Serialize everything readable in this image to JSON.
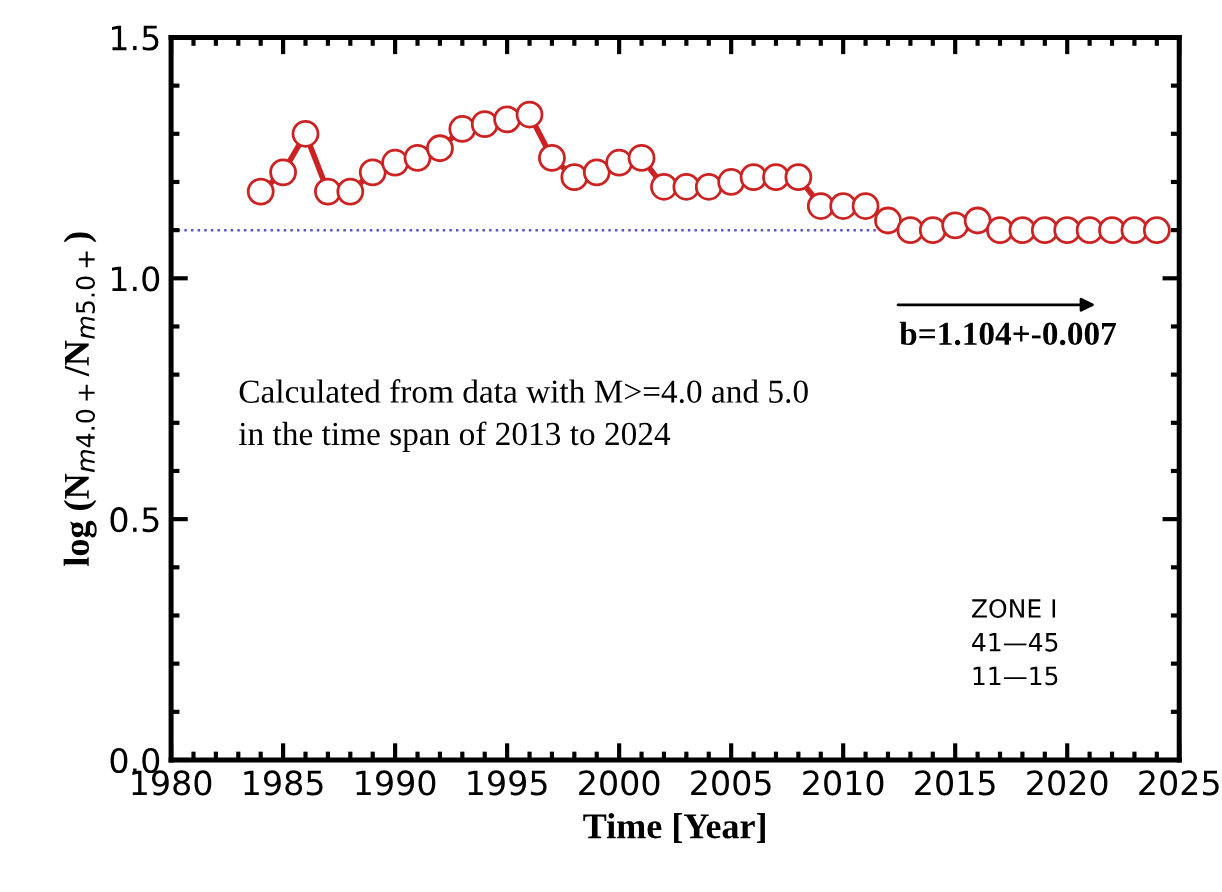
{
  "chart_data": {
    "type": "line",
    "xlabel": "Time [Year]",
    "ylabel": "log (N$_{m4.0+}$/N$_{m5.0+}$)",
    "x": [
      1984,
      1985,
      1986,
      1987,
      1988,
      1989,
      1990,
      1991,
      1992,
      1993,
      1994,
      1995,
      1996,
      1997,
      1998,
      1999,
      2000,
      2001,
      2002,
      2003,
      2004,
      2005,
      2006,
      2007,
      2008,
      2009,
      2010,
      2011,
      2012,
      2013,
      2014,
      2015,
      2016,
      2017,
      2018,
      2019,
      2020,
      2021,
      2022,
      2023,
      2024
    ],
    "series": [
      {
        "color": "#cc2222",
        "values": [
          1.18,
          1.22,
          1.3,
          1.18,
          1.18,
          1.22,
          1.24,
          1.25,
          1.27,
          1.31,
          1.32,
          1.33,
          1.34,
          1.25,
          1.21,
          1.22,
          1.24,
          1.25,
          1.19,
          1.19,
          1.19,
          1.2,
          1.21,
          1.21,
          1.21,
          1.15,
          1.15,
          1.15,
          1.12,
          1.1,
          1.1,
          1.11,
          1.12,
          1.1,
          1.1,
          1.1,
          1.1,
          1.1,
          1.1,
          1.1,
          1.1
        ]
      }
    ],
    "marker": "circle",
    "line_style": "solid",
    "xlim": [
      1980,
      2025
    ],
    "xticks": [
      1980,
      1985,
      1990,
      1995,
      2000,
      2005,
      2010,
      2015,
      2020,
      2025
    ],
    "ylim": [
      0,
      1.5
    ],
    "yticks": [
      {
        "value": 0,
        "label": "0.0"
      },
      {
        "value": 0.5,
        "label": "0.5"
      },
      {
        "value": 1,
        "label": "1.0"
      },
      {
        "value": 1.5,
        "label": "1.5"
      }
    ],
    "ref_lines": [
      {
        "axis": "y",
        "value": 1.1,
        "color": "#5555cc",
        "line_style": "dotted"
      }
    ],
    "annotations": [
      "b=1.104+-0.007",
      "Calculated from data with M>=4.0 and 5.0\nin the time span of 2013 to 2024",
      "ZONE I",
      "41—45",
      "11—15"
    ],
    "grid": false,
    "legend": false
  }
}
